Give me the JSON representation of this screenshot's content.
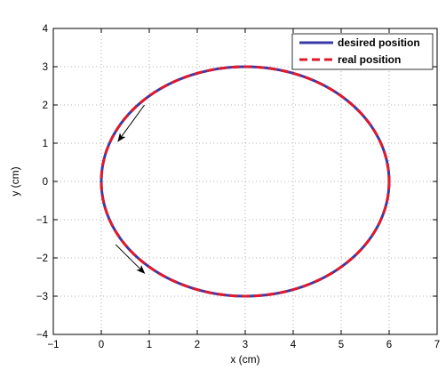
{
  "chart_data": {
    "type": "line",
    "title": "",
    "xlabel": "x (cm)",
    "ylabel": "y (cm)",
    "xlim": [
      -1,
      7
    ],
    "ylim": [
      -4,
      4
    ],
    "xticks": [
      "-1",
      "0",
      "1",
      "2",
      "3",
      "4",
      "5",
      "6",
      "7"
    ],
    "yticks": [
      "-4",
      "-3",
      "-2",
      "-1",
      "0",
      "1",
      "2",
      "3",
      "4"
    ],
    "grid": true,
    "legend_position": "top-right",
    "series": [
      {
        "name": "desired position",
        "style": "solid",
        "color": "#3a3aa8",
        "shape": "ellipse",
        "center": [
          3,
          0
        ],
        "radius_x": 3,
        "radius_y": 3
      },
      {
        "name": "real position",
        "style": "dashed",
        "color": "#e0192c",
        "shape": "ellipse",
        "center": [
          3,
          0
        ],
        "radius_x": 3,
        "radius_y": 3
      }
    ],
    "annotations": [
      {
        "type": "arrow",
        "from": [
          0.9,
          2.0
        ],
        "to": [
          0.35,
          1.05
        ]
      },
      {
        "type": "arrow",
        "from": [
          0.3,
          -1.65
        ],
        "to": [
          0.9,
          -2.4
        ]
      }
    ]
  }
}
